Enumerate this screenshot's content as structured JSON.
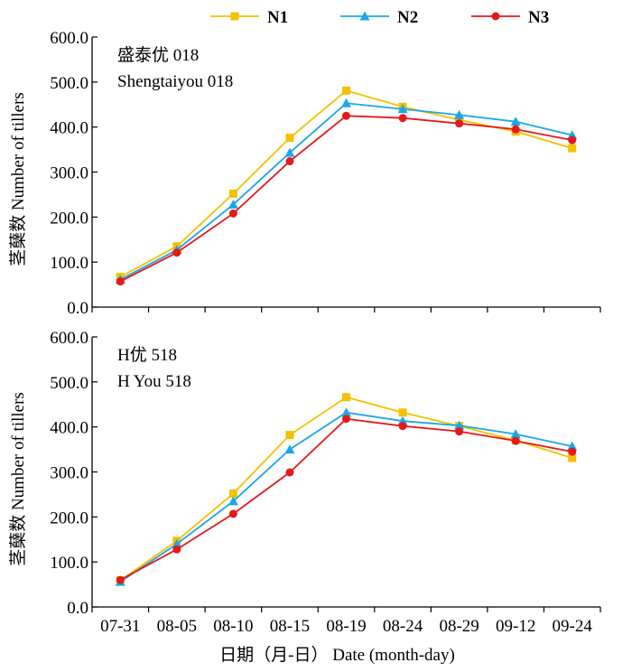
{
  "chart_data": [
    {
      "type": "line",
      "panel": "top",
      "annotation_cn": "盛泰优 018",
      "annotation_en": "Shengtaiyou 018",
      "ylabel": "茎蘖数 Number of tillers",
      "ylim": [
        0,
        600
      ],
      "yticks": [
        "600.0",
        "500.0",
        "400.0",
        "300.0",
        "200.0",
        "100.0",
        "0.0"
      ],
      "yticks_values": [
        600,
        500,
        400,
        300,
        200,
        100,
        0
      ],
      "categories": [
        "07-31",
        "08-05",
        "08-10",
        "08-15",
        "08-19",
        "08-24",
        "08-29",
        "09-12",
        "09-24"
      ],
      "series": [
        {
          "name": "N1",
          "color": "#F5C000",
          "marker": "square",
          "values": [
            67,
            135,
            252,
            376,
            481,
            445,
            416,
            390,
            353
          ]
        },
        {
          "name": "N2",
          "color": "#1AA7E8",
          "marker": "triangle",
          "values": [
            61,
            127,
            228,
            343,
            453,
            440,
            427,
            412,
            382
          ]
        },
        {
          "name": "N3",
          "color": "#E31A1C",
          "marker": "circle",
          "values": [
            57,
            121,
            208,
            324,
            425,
            420,
            408,
            395,
            371
          ]
        }
      ]
    },
    {
      "type": "line",
      "panel": "bottom",
      "annotation_cn": "H优 518",
      "annotation_en": "H You 518",
      "ylabel": "茎蘖数 Number of tillers",
      "ylim": [
        0,
        600
      ],
      "yticks": [
        "600.0",
        "500.0",
        "400.0",
        "300.0",
        "200.0",
        "100.0",
        "0.0"
      ],
      "yticks_values": [
        600,
        500,
        400,
        300,
        200,
        100,
        0
      ],
      "xlabel": "日期（月-日） Date (month-day)",
      "categories": [
        "07-31",
        "08-05",
        "08-10",
        "08-15",
        "08-19",
        "08-24",
        "08-29",
        "09-12",
        "09-24"
      ],
      "series": [
        {
          "name": "N1",
          "color": "#F5C000",
          "marker": "square",
          "values": [
            59,
            147,
            252,
            382,
            466,
            432,
            402,
            370,
            331
          ]
        },
        {
          "name": "N2",
          "color": "#1AA7E8",
          "marker": "triangle",
          "values": [
            56,
            140,
            235,
            350,
            432,
            413,
            403,
            384,
            357
          ]
        },
        {
          "name": "N3",
          "color": "#E31A1C",
          "marker": "circle",
          "values": [
            60,
            128,
            207,
            299,
            418,
            402,
            390,
            369,
            345
          ]
        }
      ]
    }
  ],
  "legend": [
    {
      "name": "N1",
      "color": "#F5C000",
      "marker": "square"
    },
    {
      "name": "N2",
      "color": "#1AA7E8",
      "marker": "triangle"
    },
    {
      "name": "N3",
      "color": "#E31A1C",
      "marker": "circle"
    }
  ]
}
